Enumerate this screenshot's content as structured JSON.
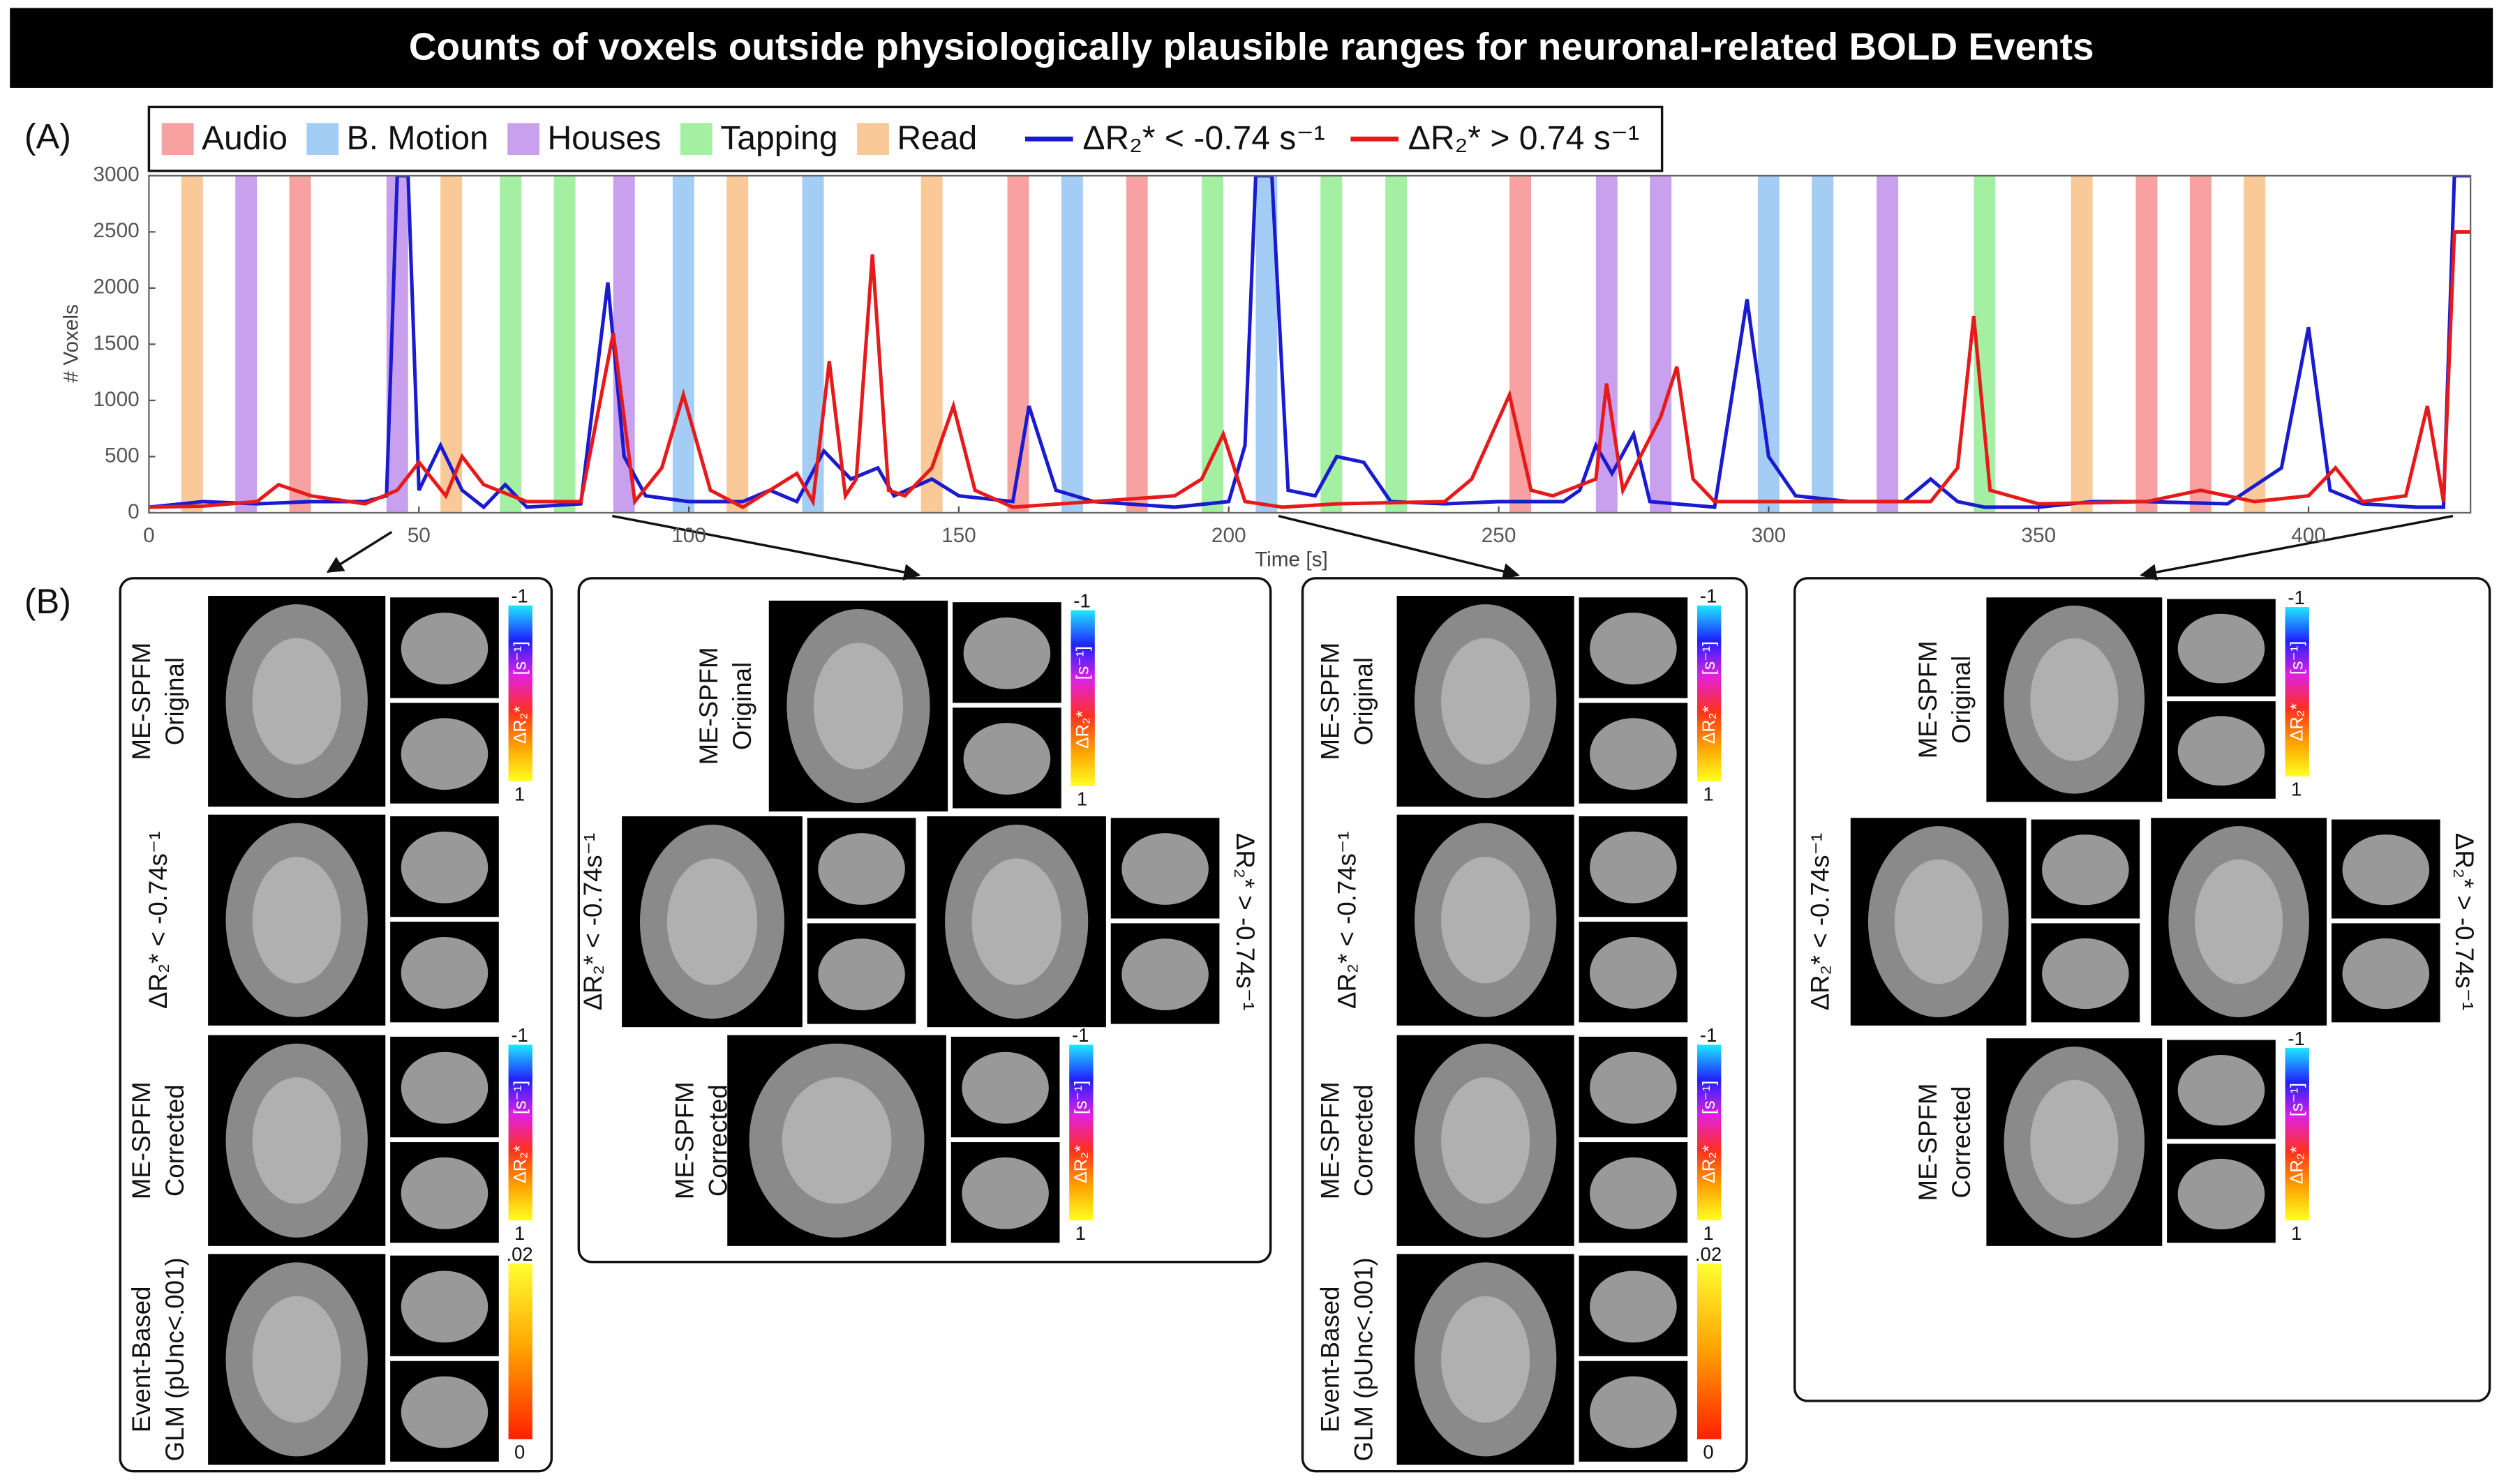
{
  "chart_data": {
    "type": "line",
    "title": "Counts of voxels outside physiologically plausible ranges for neuronal-related BOLD Events",
    "panel_label": "(A)",
    "x_label": "Time [s]",
    "y_label": "# Voxels",
    "xlim": [
      0,
      430
    ],
    "ylim": [
      0,
      3000
    ],
    "xticks": [
      0,
      50,
      100,
      150,
      200,
      250,
      300,
      350,
      400
    ],
    "yticks": [
      0,
      500,
      1000,
      1500,
      2000,
      2500,
      3000
    ],
    "grid": false,
    "event_duration": 4,
    "events": [
      {
        "name": "Audio",
        "color": "#f7a1a1",
        "onsets": [
          26,
          159,
          181,
          252,
          368,
          378
        ]
      },
      {
        "name": "B. Motion",
        "color": "#a3cdf5",
        "onsets": [
          97,
          121,
          169,
          205,
          298,
          308
        ]
      },
      {
        "name": "Houses",
        "color": "#c8a0ee",
        "onsets": [
          16,
          44,
          86,
          268,
          278,
          320
        ]
      },
      {
        "name": "Tapping",
        "color": "#a3f0a3",
        "onsets": [
          65,
          75,
          195,
          217,
          229,
          338
        ]
      },
      {
        "name": "Read",
        "color": "#f9c998",
        "onsets": [
          6,
          54,
          107,
          143,
          356,
          388
        ]
      }
    ],
    "series": [
      {
        "name": "ΔR₂* <  -0.74 s⁻¹",
        "color": "#1a1ad0",
        "x": [
          0,
          10,
          20,
          30,
          40,
          44,
          46,
          48,
          50,
          54,
          58,
          62,
          66,
          70,
          80,
          85,
          88,
          92,
          100,
          110,
          115,
          120,
          125,
          130,
          135,
          138,
          145,
          150,
          160,
          163,
          168,
          175,
          190,
          200,
          203,
          205,
          208,
          211,
          216,
          220,
          225,
          230,
          240,
          250,
          262,
          265,
          268,
          271,
          275,
          278,
          290,
          296,
          300,
          305,
          315,
          325,
          330,
          335,
          340,
          350,
          360,
          370,
          385,
          395,
          400,
          404,
          410,
          420,
          425,
          427,
          430
        ],
        "values": [
          50,
          100,
          80,
          100,
          100,
          150,
          3000,
          3000,
          200,
          600,
          200,
          50,
          250,
          50,
          80,
          2050,
          500,
          150,
          100,
          100,
          200,
          100,
          550,
          300,
          400,
          150,
          300,
          150,
          100,
          950,
          200,
          100,
          50,
          100,
          600,
          3000,
          3000,
          200,
          150,
          500,
          450,
          100,
          80,
          100,
          100,
          200,
          600,
          350,
          700,
          100,
          50,
          1900,
          500,
          150,
          100,
          100,
          300,
          100,
          50,
          50,
          100,
          100,
          80,
          400,
          1650,
          200,
          80,
          50,
          50,
          3000,
          3000
        ]
      },
      {
        "name": "ΔR₂* >  0.74 s⁻¹",
        "color": "#e61a1a",
        "x": [
          0,
          10,
          20,
          24,
          30,
          40,
          46,
          50,
          55,
          58,
          62,
          70,
          80,
          86,
          90,
          95,
          99,
          104,
          110,
          120,
          123,
          126,
          129,
          131,
          134,
          137,
          140,
          145,
          149,
          153,
          160,
          190,
          195,
          199,
          203,
          210,
          220,
          240,
          245,
          252,
          256,
          260,
          268,
          270,
          273,
          280,
          283,
          286,
          290,
          300,
          330,
          335,
          338,
          341,
          350,
          370,
          380,
          390,
          400,
          405,
          410,
          418,
          422,
          425,
          427,
          430
        ],
        "values": [
          50,
          60,
          100,
          250,
          150,
          80,
          200,
          450,
          150,
          500,
          250,
          100,
          100,
          1600,
          100,
          400,
          1050,
          200,
          50,
          350,
          100,
          1350,
          150,
          300,
          2300,
          200,
          150,
          400,
          950,
          200,
          50,
          150,
          300,
          700,
          100,
          50,
          80,
          100,
          300,
          1050,
          200,
          150,
          300,
          1150,
          200,
          850,
          1300,
          300,
          100,
          100,
          100,
          400,
          1750,
          200,
          80,
          100,
          200,
          100,
          150,
          400,
          100,
          150,
          950,
          100,
          2500,
          2500
        ]
      }
    ]
  },
  "panel_b": {
    "label": "(B)",
    "boxes": [
      {
        "cells": [
          {
            "label": [
              "ME-SPFM",
              "Original"
            ],
            "colorbar": {
              "top": "-1",
              "unit": "[s⁻¹]",
              "name": "ΔR₂*",
              "bottom": "1",
              "colors": [
                "#1ee8ff",
                "#2020ff",
                "#e020e0",
                "#ff3020",
                "#ffa000",
                "#ffff20"
              ]
            }
          },
          {
            "label": [
              "ΔR₂* < -0.74s⁻¹"
            ]
          },
          {
            "label": [
              "ME-SPFM",
              "Corrected"
            ],
            "colorbar": {
              "top": "-1",
              "unit": "[s⁻¹]",
              "name": "ΔR₂*",
              "bottom": "1",
              "colors": [
                "#1ee8ff",
                "#2020ff",
                "#e020e0",
                "#ff3020",
                "#ffa000",
                "#ffff20"
              ]
            }
          },
          {
            "label": [
              "Event-Based",
              "GLM (pUnc<.001)"
            ],
            "colorbar": {
              "top": ".02",
              "bottom": "0",
              "colors": [
                "#ffff30",
                "#ffa000",
                "#ff2000"
              ]
            }
          }
        ]
      },
      {
        "cells": [
          {
            "label": [
              "ME-SPFM",
              "Original"
            ],
            "colorbar": {
              "top": "-1",
              "unit": "[s⁻¹]",
              "name": "ΔR₂*",
              "bottom": "1",
              "colors": [
                "#1ee8ff",
                "#2020ff",
                "#e020e0",
                "#ff3020",
                "#ffa000",
                "#ffff20"
              ]
            }
          },
          {
            "label": [
              "ΔR₂* < -0.74s⁻¹"
            ]
          },
          {
            "label": [
              "ΔR₂* > -0.74s⁻¹"
            ]
          },
          {
            "label": [
              "ME-SPFM",
              "Corrected"
            ],
            "colorbar": {
              "top": "-1",
              "unit": "[s⁻¹]",
              "name": "ΔR₂*",
              "bottom": "1",
              "colors": [
                "#1ee8ff",
                "#2020ff",
                "#e020e0",
                "#ff3020",
                "#ffa000",
                "#ffff20"
              ]
            }
          }
        ]
      },
      {
        "cells": [
          {
            "label": [
              "ME-SPFM",
              "Original"
            ],
            "colorbar": {
              "top": "-1",
              "unit": "[s⁻¹]",
              "name": "ΔR₂*",
              "bottom": "1",
              "colors": [
                "#1ee8ff",
                "#2020ff",
                "#e020e0",
                "#ff3020",
                "#ffa000",
                "#ffff20"
              ]
            }
          },
          {
            "label": [
              "ΔR₂* < -0.74s⁻¹"
            ]
          },
          {
            "label": [
              "ME-SPFM",
              "Corrected"
            ],
            "colorbar": {
              "top": "-1",
              "unit": "[s⁻¹]",
              "name": "ΔR₂*",
              "bottom": "1",
              "colors": [
                "#1ee8ff",
                "#2020ff",
                "#e020e0",
                "#ff3020",
                "#ffa000",
                "#ffff20"
              ]
            }
          },
          {
            "label": [
              "Event-Based",
              "GLM (pUnc<.001)"
            ],
            "colorbar": {
              "top": ".02",
              "bottom": "0",
              "colors": [
                "#ffff30",
                "#ffa000",
                "#ff2000"
              ]
            }
          }
        ]
      },
      {
        "cells": [
          {
            "label": [
              "ME-SPFM",
              "Original"
            ],
            "colorbar": {
              "top": "-1",
              "unit": "[s⁻¹]",
              "name": "ΔR₂*",
              "bottom": "1",
              "colors": [
                "#1ee8ff",
                "#2020ff",
                "#e020e0",
                "#ff3020",
                "#ffa000",
                "#ffff20"
              ]
            }
          },
          {
            "label": [
              "ΔR₂* < -0.74s⁻¹"
            ]
          },
          {
            "label": [
              "ΔR₂* > -0.74s⁻¹"
            ]
          },
          {
            "label": [
              "ME-SPFM",
              "Corrected"
            ],
            "colorbar": {
              "top": "-1",
              "unit": "[s⁻¹]",
              "name": "ΔR₂*",
              "bottom": "1",
              "colors": [
                "#1ee8ff",
                "#2020ff",
                "#e020e0",
                "#ff3020",
                "#ffa000",
                "#ffff20"
              ]
            }
          }
        ]
      }
    ]
  }
}
